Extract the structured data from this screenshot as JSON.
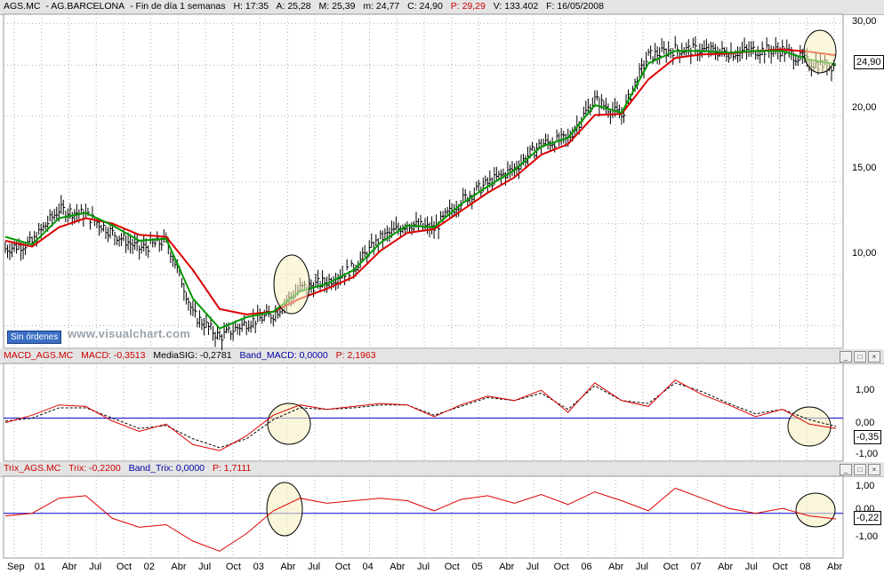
{
  "main_header": {
    "symbol": "AGS.MC",
    "name": "AG.BARCELONA",
    "timeframe": "Fin de día 1 semanas",
    "h": "H: 17:35",
    "a": "A: 25,28",
    "m": "M: 25,39",
    "mm": "m: 24,77",
    "c": "C: 24,90",
    "p": "P: 29,29",
    "v": "V: 133.402",
    "f": "F: 16/05/2008"
  },
  "macd_header": {
    "name": "MACD_AGS.MC",
    "macd": "MACD: -0,3513",
    "signal": "MediaSIG: -0,2781",
    "band": "Band_MACD: 0,0000",
    "p": "P: 2,1963"
  },
  "trix_header": {
    "name": "Trix_AGS.MC",
    "trix": "Trix: -0,2200",
    "band": "Band_Trix: 0,0000",
    "p": "P: 1,7111"
  },
  "price_axis": [
    "30,00",
    "20,00",
    "15,00",
    "10,00"
  ],
  "price_tag": "24,90",
  "macd_axis": [
    "1,00",
    "0,00",
    "-1,00"
  ],
  "macd_tag": "-0,35",
  "trix_axis": [
    "1,00",
    "0,00",
    "-1,00"
  ],
  "trix_tag": "-0,22",
  "sin_ordenes": "Sin órdenes",
  "watermark": "www.visualchart.com",
  "x_labels": [
    "Sep",
    "01",
    "Abr",
    "Jul",
    "Oct",
    "02",
    "Abr",
    "Jul",
    "Oct",
    "03",
    "Abr",
    "Jul",
    "Oct",
    "04",
    "Abr",
    "Jul",
    "Oct",
    "05",
    "Abr",
    "Jul",
    "Oct",
    "06",
    "Abr",
    "Jul",
    "Oct",
    "07",
    "Abr",
    "Jul",
    "Oct",
    "08",
    "Abr"
  ],
  "colors": {
    "price_bars": "#000000",
    "ma_fast": "#009900",
    "ma_slow": "#dd0000",
    "band": "#0000cc",
    "grid": "#b0b0b0",
    "highlight": "#f5f0c0"
  },
  "chart_data": [
    {
      "type": "line",
      "title": "AGS.MC - AG.BARCELONA - Fin de día 1 semanas",
      "x": [
        "Sep 2000",
        "Jan 2001",
        "Apr 2001",
        "Jul 2001",
        "Oct 2001",
        "Jan 2002",
        "Apr 2002",
        "Jul 2002",
        "Oct 2002",
        "Jan 2003",
        "Apr 2003",
        "Jul 2003",
        "Oct 2003",
        "Jan 2004",
        "Apr 2004",
        "Jul 2004",
        "Oct 2004",
        "Jan 2005",
        "Apr 2005",
        "Jul 2005",
        "Oct 2005",
        "Jan 2006",
        "Apr 2006",
        "Jul 2006",
        "Oct 2006",
        "Jan 2007",
        "Apr 2007",
        "Jul 2007",
        "Oct 2007",
        "Jan 2008",
        "Apr 2008",
        "May 2008"
      ],
      "series": [
        {
          "values": [
            11.2,
            11.5,
            13.3,
            13.0,
            12.0,
            11.2,
            11.6,
            8.4,
            7.6,
            8.1,
            8.4,
            9.4,
            9.7,
            10.3,
            11.7,
            12.5,
            12.2,
            13.8,
            14.9,
            15.9,
            17.7,
            18.1,
            21.5,
            20.0,
            26.0,
            26.8,
            26.7,
            26.4,
            26.7,
            26.7,
            25.3,
            24.9
          ]
        },
        {
          "values": [
            11.8,
            11.4,
            12.8,
            13.1,
            12.4,
            11.6,
            11.7,
            9.0,
            7.9,
            8.3,
            8.5,
            9.3,
            9.6,
            10.2,
            11.5,
            12.4,
            12.3,
            13.6,
            14.7,
            15.8,
            17.5,
            18.2,
            21.0,
            20.3,
            25.2,
            26.6,
            26.6,
            26.4,
            26.6,
            26.6,
            25.6,
            25.1
          ]
        },
        {
          "values": [
            11.6,
            11.3,
            12.3,
            12.8,
            12.5,
            11.9,
            11.8,
            10.2,
            8.6,
            8.4,
            8.5,
            9.0,
            9.4,
            9.9,
            11.1,
            12.0,
            12.2,
            13.2,
            14.3,
            15.3,
            16.9,
            17.7,
            20.1,
            20.2,
            23.5,
            25.8,
            26.2,
            26.3,
            26.6,
            26.8,
            26.5,
            26.1
          ]
        }
      ],
      "yscale": "log",
      "ylim": [
        7.3,
        31
      ],
      "grid": true,
      "annotations": [
        "24,90"
      ]
    },
    {
      "type": "line",
      "title": "MACD_AGS.MC",
      "x": [
        "Sep 2000",
        "Jan 2001",
        "Apr 2001",
        "Jul 2001",
        "Oct 2001",
        "Jan 2002",
        "Apr 2002",
        "Jul 2002",
        "Oct 2002",
        "Jan 2003",
        "Apr 2003",
        "Jul 2003",
        "Oct 2003",
        "Jan 2004",
        "Apr 2004",
        "Jul 2004",
        "Oct 2004",
        "Jan 2005",
        "Apr 2005",
        "Jul 2005",
        "Oct 2005",
        "Jan 2006",
        "Apr 2006",
        "Jul 2006",
        "Oct 2006",
        "Jan 2007",
        "Apr 2007",
        "Jul 2007",
        "Oct 2007",
        "Jan 2008",
        "Apr 2008",
        "May 2008"
      ],
      "series": [
        {
          "values": [
            -0.15,
            0.1,
            0.45,
            0.4,
            -0.1,
            -0.45,
            -0.2,
            -0.9,
            -1.1,
            -0.6,
            0.1,
            0.45,
            0.3,
            0.4,
            0.5,
            0.45,
            0.05,
            0.45,
            0.75,
            0.6,
            0.95,
            0.2,
            1.2,
            0.6,
            0.4,
            1.3,
            0.8,
            0.45,
            0.05,
            0.3,
            -0.2,
            -0.35
          ]
        },
        {
          "values": [
            -0.1,
            0.0,
            0.35,
            0.35,
            0.0,
            -0.35,
            -0.25,
            -0.7,
            -1.0,
            -0.7,
            -0.05,
            0.35,
            0.3,
            0.35,
            0.45,
            0.45,
            0.1,
            0.4,
            0.7,
            0.6,
            0.85,
            0.3,
            1.1,
            0.6,
            0.5,
            1.2,
            0.9,
            0.5,
            0.15,
            0.3,
            -0.05,
            -0.28
          ]
        }
      ],
      "ylim": [
        -1.4,
        1.8
      ],
      "grid": true,
      "annotations": [
        "-0,35"
      ]
    },
    {
      "type": "line",
      "title": "Trix_AGS.MC",
      "x": [
        "Sep 2000",
        "Jan 2001",
        "Apr 2001",
        "Jul 2001",
        "Oct 2001",
        "Jan 2002",
        "Apr 2002",
        "Jul 2002",
        "Oct 2002",
        "Jan 2003",
        "Apr 2003",
        "Jul 2003",
        "Oct 2003",
        "Jan 2004",
        "Apr 2004",
        "Jul 2004",
        "Oct 2004",
        "Jan 2005",
        "Apr 2005",
        "Jul 2005",
        "Oct 2005",
        "Jan 2006",
        "Apr 2006",
        "Jul 2006",
        "Oct 2006",
        "Jan 2007",
        "Apr 2007",
        "Jul 2007",
        "Oct 2007",
        "Jan 2008",
        "Apr 2008",
        "May 2008"
      ],
      "series": [
        {
          "values": [
            -0.1,
            0.0,
            0.6,
            0.7,
            -0.2,
            -0.55,
            -0.45,
            -1.1,
            -1.5,
            -0.8,
            0.1,
            0.6,
            0.4,
            0.5,
            0.6,
            0.5,
            0.1,
            0.55,
            0.7,
            0.4,
            0.75,
            0.35,
            0.85,
            0.5,
            0.1,
            1.0,
            0.6,
            0.2,
            0.0,
            0.2,
            -0.1,
            -0.22
          ]
        }
      ],
      "ylim": [
        -1.7,
        1.4
      ],
      "grid": true,
      "annotations": [
        "-0,22"
      ]
    }
  ]
}
